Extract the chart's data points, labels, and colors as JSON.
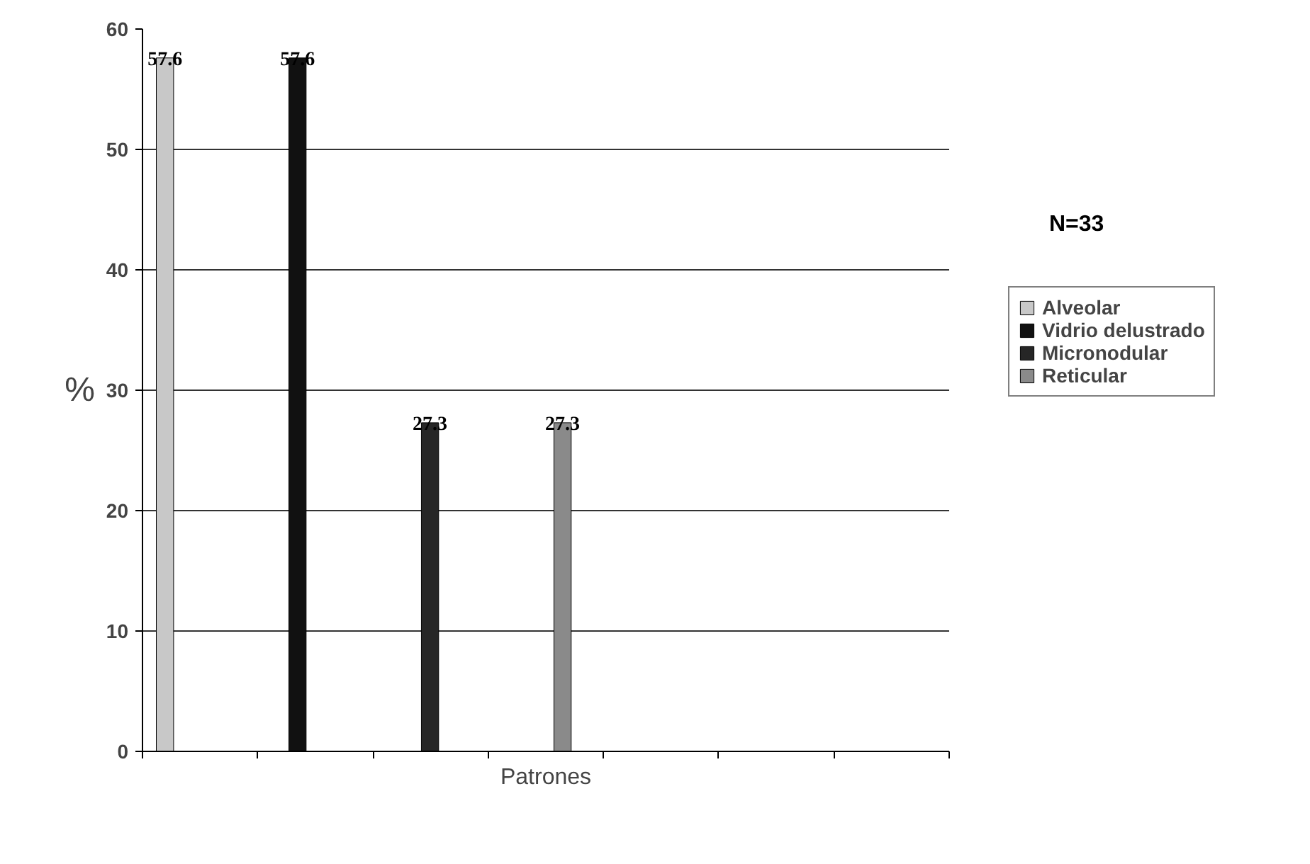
{
  "chart_data": {
    "type": "bar",
    "xlabel": "Patrones",
    "ylabel": "%",
    "annotations": [
      "N=33"
    ],
    "categories": [
      null,
      null,
      null,
      null,
      null,
      null,
      null
    ],
    "series": [
      {
        "name": "Alveolar",
        "color": "#c8c8c8",
        "values": [
          57.6,
          null,
          null,
          null,
          null,
          null,
          null
        ]
      },
      {
        "name": "Vidrio delustrado",
        "color": "#111111",
        "values": [
          null,
          57.6,
          null,
          null,
          null,
          null,
          null
        ]
      },
      {
        "name": "Micronodular",
        "color": "#262626",
        "values": [
          null,
          null,
          27.3,
          null,
          null,
          null,
          null
        ]
      },
      {
        "name": "Reticular",
        "color": "#8a8a8a",
        "values": [
          null,
          null,
          null,
          27.3,
          null,
          null,
          null
        ]
      }
    ],
    "ylim": [
      0,
      60
    ],
    "yticks": [
      0,
      10,
      20,
      30,
      40,
      50,
      60
    ],
    "grid": "y",
    "legend": "right",
    "data_labels": true,
    "tick_labels": "y"
  }
}
